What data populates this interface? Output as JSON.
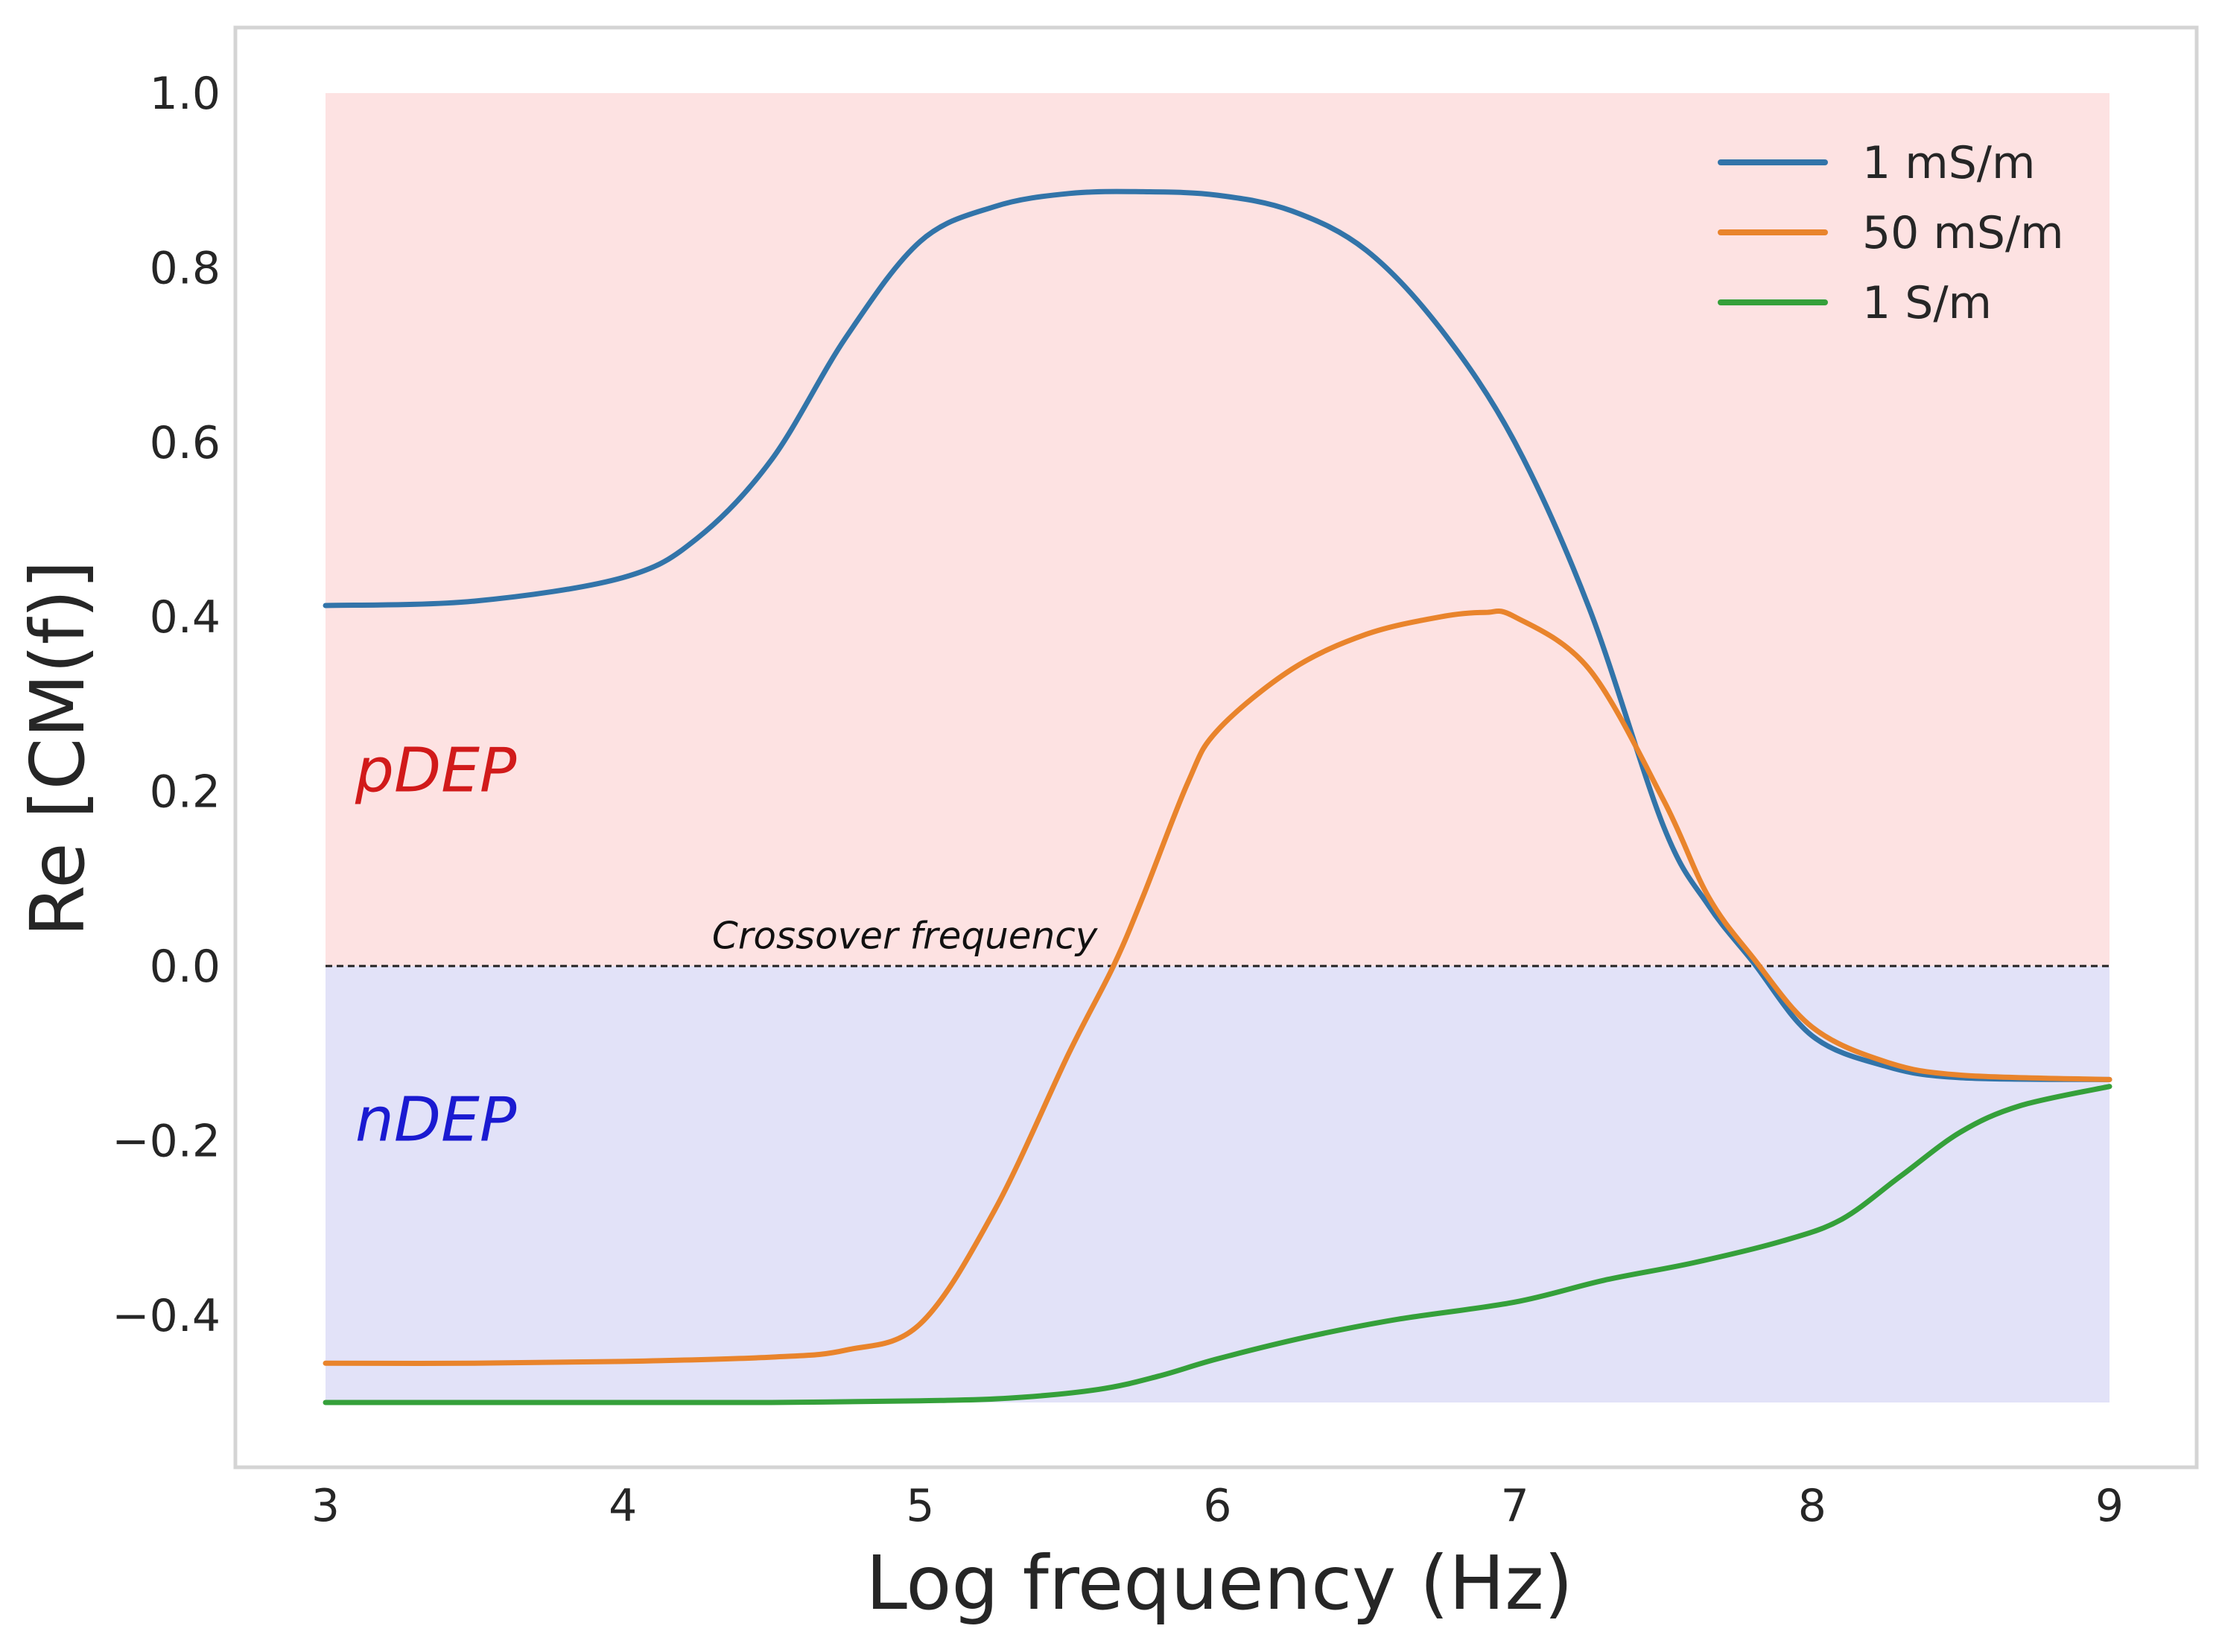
{
  "chart_data": {
    "type": "line",
    "title": "",
    "xlabel": "Log frequency (Hz)",
    "ylabel": "Re [CM(f)]",
    "xlim": [
      3,
      9
    ],
    "ylim": [
      -0.55,
      1.0
    ],
    "grid": false,
    "legend_position": "top-right",
    "x_ticks": [
      {
        "value": 3,
        "label": "3"
      },
      {
        "value": 4,
        "label": "4"
      },
      {
        "value": 5,
        "label": "5"
      },
      {
        "value": 6,
        "label": "6"
      },
      {
        "value": 7,
        "label": "7"
      },
      {
        "value": 8,
        "label": "8"
      },
      {
        "value": 9,
        "label": "9"
      }
    ],
    "y_ticks": [
      {
        "value": 1.0,
        "label": "1.0"
      },
      {
        "value": 0.8,
        "label": "0.8"
      },
      {
        "value": 0.6,
        "label": "0.6"
      },
      {
        "value": 0.4,
        "label": "0.4"
      },
      {
        "value": 0.2,
        "label": "0.2"
      },
      {
        "value": 0.0,
        "label": "0.0"
      },
      {
        "value": -0.2,
        "label": "−0.2"
      },
      {
        "value": -0.4,
        "label": "−0.4"
      }
    ],
    "regions": [
      {
        "label": "pDEP",
        "y_from": 0.0,
        "y_to": 1.0,
        "x_from": 3,
        "x_to": 9,
        "fill": "#fde2e2",
        "text_color": "#d11a1a",
        "label_x": 3.1,
        "label_y": 0.2
      },
      {
        "label": "nDEP",
        "y_from": -0.5,
        "y_to": 0.0,
        "x_from": 3,
        "x_to": 9,
        "fill": "#e2e2f8",
        "text_color": "#1a1ad1",
        "label_x": 3.1,
        "label_y": -0.2
      }
    ],
    "reference_line": {
      "y": 0.0,
      "style": "dashed",
      "color": "#222222"
    },
    "annotations": [
      {
        "text": "Crossover frequency",
        "x": 4.3,
        "y": 0.02
      }
    ],
    "series": [
      {
        "name": "1 mS/m",
        "color": "#3274a9",
        "x": [
          3.0,
          3.5,
          4.0,
          4.25,
          4.5,
          4.75,
          5.0,
          5.25,
          5.5,
          5.75,
          6.0,
          6.25,
          6.5,
          6.75,
          7.0,
          7.25,
          7.5,
          7.65,
          7.8,
          8.0,
          8.25,
          8.5,
          9.0
        ],
        "y": [
          0.413,
          0.418,
          0.445,
          0.49,
          0.58,
          0.72,
          0.83,
          0.87,
          0.885,
          0.887,
          0.883,
          0.865,
          0.82,
          0.73,
          0.6,
          0.41,
          0.16,
          0.07,
          0.005,
          -0.08,
          -0.115,
          -0.128,
          -0.13
        ]
      },
      {
        "name": "50 mS/m",
        "color": "#e9842c",
        "x": [
          3.0,
          3.5,
          4.0,
          4.5,
          4.75,
          5.0,
          5.25,
          5.5,
          5.65,
          5.75,
          5.9,
          6.0,
          6.25,
          6.5,
          6.75,
          6.9,
          7.0,
          7.25,
          7.5,
          7.65,
          7.8,
          8.0,
          8.25,
          8.5,
          9.0
        ],
        "y": [
          -0.455,
          -0.455,
          -0.453,
          -0.448,
          -0.44,
          -0.41,
          -0.28,
          -0.1,
          0.0,
          0.08,
          0.21,
          0.27,
          0.34,
          0.38,
          0.4,
          0.405,
          0.4,
          0.34,
          0.19,
          0.08,
          0.01,
          -0.07,
          -0.11,
          -0.125,
          -0.13
        ]
      },
      {
        "name": "1 S/m",
        "color": "#35a03a",
        "x": [
          3.0,
          3.5,
          4.0,
          4.5,
          5.0,
          5.3,
          5.6,
          5.8,
          6.0,
          6.3,
          6.6,
          7.0,
          7.3,
          7.6,
          7.9,
          8.1,
          8.3,
          8.5,
          8.7,
          9.0
        ],
        "y": [
          -0.5,
          -0.5,
          -0.5,
          -0.5,
          -0.498,
          -0.495,
          -0.485,
          -0.47,
          -0.45,
          -0.425,
          -0.405,
          -0.385,
          -0.36,
          -0.34,
          -0.315,
          -0.29,
          -0.24,
          -0.19,
          -0.16,
          -0.138
        ]
      }
    ]
  }
}
